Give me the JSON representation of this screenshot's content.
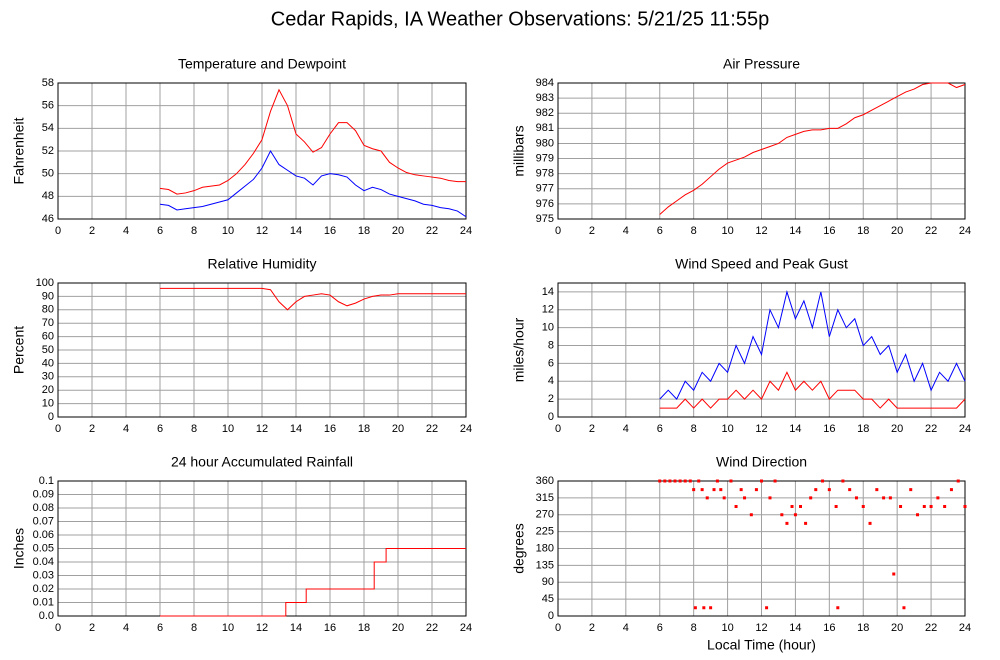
{
  "title": "Cedar Rapids, IA Weather Observations: 5/21/25 11:55p",
  "chart_data": [
    {
      "type": "line",
      "title": "Temperature and Dewpoint",
      "y_label": "Fahrenheit",
      "xlim": [
        0,
        24
      ],
      "xticks": [
        0,
        2,
        4,
        6,
        8,
        10,
        12,
        14,
        16,
        18,
        20,
        22,
        24
      ],
      "ylim": [
        46,
        58
      ],
      "yticks": [
        46,
        48,
        50,
        52,
        54,
        56,
        58
      ],
      "grid": true,
      "x": [
        6,
        6.5,
        7,
        7.5,
        8,
        8.5,
        9,
        9.5,
        10,
        10.5,
        11,
        11.5,
        12,
        12.5,
        13,
        13.5,
        14,
        14.5,
        15,
        15.5,
        16,
        16.5,
        17,
        17.5,
        18,
        18.5,
        19,
        19.5,
        20,
        20.5,
        21,
        21.5,
        22,
        22.5,
        23,
        23.5,
        24
      ],
      "series": [
        {
          "color": "#ff0000",
          "values": [
            48.7,
            48.6,
            48.2,
            48.3,
            48.5,
            48.8,
            48.9,
            49.0,
            49.4,
            50.0,
            50.8,
            51.8,
            53.0,
            55.5,
            57.4,
            56.0,
            53.5,
            52.8,
            51.9,
            52.3,
            53.5,
            54.5,
            54.5,
            53.8,
            52.5,
            52.2,
            52.0,
            51.0,
            50.5,
            50.1,
            49.9,
            49.8,
            49.7,
            49.6,
            49.4,
            49.3,
            49.3
          ]
        },
        {
          "color": "#0000ff",
          "values": [
            47.3,
            47.2,
            46.8,
            46.9,
            47.0,
            47.1,
            47.3,
            47.5,
            47.7,
            48.3,
            48.9,
            49.5,
            50.5,
            52.0,
            50.8,
            50.3,
            49.8,
            49.6,
            49.0,
            49.8,
            50.0,
            49.9,
            49.7,
            49.0,
            48.5,
            48.8,
            48.6,
            48.2,
            48.0,
            47.8,
            47.6,
            47.3,
            47.2,
            47.0,
            46.9,
            46.7,
            46.2
          ]
        }
      ]
    },
    {
      "type": "line",
      "title": "Air Pressure",
      "y_label": "millibars",
      "xlim": [
        0,
        24
      ],
      "xticks": [
        0,
        2,
        4,
        6,
        8,
        10,
        12,
        14,
        16,
        18,
        20,
        22,
        24
      ],
      "ylim": [
        975,
        984
      ],
      "yticks": [
        975,
        976,
        977,
        978,
        979,
        980,
        981,
        982,
        983,
        984
      ],
      "grid": true,
      "x": [
        6,
        6.5,
        7,
        7.5,
        8,
        8.5,
        9,
        9.5,
        10,
        10.5,
        11,
        11.5,
        12,
        12.5,
        13,
        13.5,
        14,
        14.5,
        15,
        15.5,
        16,
        16.5,
        17,
        17.5,
        18,
        18.5,
        19,
        19.5,
        20,
        20.5,
        21,
        21.5,
        22,
        22.5,
        23,
        23.5,
        24
      ],
      "series": [
        {
          "color": "#ff0000",
          "values": [
            975.3,
            975.8,
            976.2,
            976.6,
            976.9,
            977.3,
            977.8,
            978.3,
            978.7,
            978.9,
            979.1,
            979.4,
            979.6,
            979.8,
            980.0,
            980.4,
            980.6,
            980.8,
            980.9,
            980.9,
            981.0,
            981.0,
            981.3,
            981.7,
            981.9,
            982.2,
            982.5,
            982.8,
            983.1,
            983.4,
            983.6,
            983.9,
            984.0,
            984.0,
            984.0,
            983.7,
            983.9
          ]
        }
      ]
    },
    {
      "type": "line",
      "title": "Relative Humidity",
      "y_label": "Percent",
      "xlim": [
        0,
        24
      ],
      "xticks": [
        0,
        2,
        4,
        6,
        8,
        10,
        12,
        14,
        16,
        18,
        20,
        22,
        24
      ],
      "ylim": [
        0,
        100
      ],
      "yticks": [
        0,
        10,
        20,
        30,
        40,
        50,
        60,
        70,
        80,
        90,
        100
      ],
      "grid": true,
      "x": [
        6,
        6.5,
        7,
        7.5,
        8,
        8.5,
        9,
        9.5,
        10,
        10.5,
        11,
        11.5,
        12,
        12.5,
        13,
        13.5,
        14,
        14.5,
        15,
        15.5,
        16,
        16.5,
        17,
        17.5,
        18,
        18.5,
        19,
        19.5,
        20,
        20.5,
        21,
        21.5,
        22,
        22.5,
        23,
        23.5,
        24
      ],
      "series": [
        {
          "color": "#ff0000",
          "values": [
            96,
            96,
            96,
            96,
            96,
            96,
            96,
            96,
            96,
            96,
            96,
            96,
            96,
            95,
            86,
            80,
            86,
            90,
            91,
            92,
            91,
            86,
            83,
            85,
            88,
            90,
            91,
            91,
            92,
            92,
            92,
            92,
            92,
            92,
            92,
            92,
            92
          ]
        }
      ]
    },
    {
      "type": "line",
      "title": "Wind Speed and Peak Gust",
      "y_label": "miles/hour",
      "xlim": [
        0,
        24
      ],
      "xticks": [
        0,
        2,
        4,
        6,
        8,
        10,
        12,
        14,
        16,
        18,
        20,
        22,
        24
      ],
      "ylim": [
        0,
        15
      ],
      "yticks": [
        0,
        2,
        4,
        6,
        8,
        10,
        12,
        14
      ],
      "grid": true,
      "x": [
        6,
        6.5,
        7,
        7.5,
        8,
        8.5,
        9,
        9.5,
        10,
        10.5,
        11,
        11.5,
        12,
        12.5,
        13,
        13.5,
        14,
        14.5,
        15,
        15.5,
        16,
        16.5,
        17,
        17.5,
        18,
        18.5,
        19,
        19.5,
        20,
        20.5,
        21,
        21.5,
        22,
        22.5,
        23,
        23.5,
        24
      ],
      "series": [
        {
          "color": "#0000ff",
          "values": [
            2,
            3,
            2,
            4,
            3,
            5,
            4,
            6,
            5,
            8,
            6,
            9,
            7,
            12,
            10,
            14,
            11,
            13,
            10,
            14,
            9,
            12,
            10,
            11,
            8,
            9,
            7,
            8,
            5,
            7,
            4,
            6,
            3,
            5,
            4,
            6,
            4
          ]
        },
        {
          "color": "#ff0000",
          "values": [
            1,
            1,
            1,
            2,
            1,
            2,
            1,
            2,
            2,
            3,
            2,
            3,
            2,
            4,
            3,
            5,
            3,
            4,
            3,
            4,
            2,
            3,
            3,
            3,
            2,
            2,
            1,
            2,
            1,
            1,
            1,
            1,
            1,
            1,
            1,
            1,
            2
          ]
        }
      ]
    },
    {
      "type": "line",
      "title": "24 hour Accumulated Rainfall",
      "y_label": "Inches",
      "drawstyle": "steps-post",
      "xlim": [
        0,
        24
      ],
      "xticks": [
        0,
        2,
        4,
        6,
        8,
        10,
        12,
        14,
        16,
        18,
        20,
        22,
        24
      ],
      "ylim": [
        0,
        0.1
      ],
      "yticks": [
        {
          "value": 0,
          "label": "0.0"
        },
        0.01,
        0.02,
        0.03,
        0.04,
        0.05,
        0.06,
        0.07,
        0.08,
        0.09,
        0.1
      ],
      "grid": true,
      "x": [
        6,
        13.4,
        14.6,
        18.6,
        19.3,
        24
      ],
      "series": [
        {
          "color": "#ff0000",
          "values": [
            0,
            0.01,
            0.02,
            0.04,
            0.05,
            0.05
          ]
        }
      ]
    },
    {
      "type": "scatter",
      "title": "Wind Direction",
      "y_label": "degrees",
      "x_label": "Local Time (hour)",
      "xlim": [
        0,
        24
      ],
      "xticks": [
        0,
        2,
        4,
        6,
        8,
        10,
        12,
        14,
        16,
        18,
        20,
        22,
        24
      ],
      "ylim": [
        0,
        360
      ],
      "yticks": [
        0,
        45,
        90,
        135,
        180,
        225,
        270,
        315,
        360
      ],
      "grid": true,
      "x": [
        6,
        6.3,
        6.6,
        6.9,
        7.2,
        7.5,
        7.8,
        8.0,
        8.1,
        8.3,
        8.5,
        8.6,
        8.8,
        9.0,
        9.2,
        9.4,
        9.6,
        9.8,
        10.2,
        10.5,
        10.8,
        11.0,
        11.4,
        11.7,
        12.0,
        12.3,
        12.5,
        12.8,
        13.2,
        13.5,
        13.8,
        14.0,
        14.3,
        14.6,
        14.9,
        15.2,
        15.6,
        16.0,
        16.4,
        16.5,
        16.8,
        17.2,
        17.6,
        18.0,
        18.4,
        18.8,
        19.2,
        19.6,
        19.8,
        20.2,
        20.4,
        20.8,
        21.2,
        21.6,
        22.0,
        22.4,
        22.8,
        23.2,
        23.6,
        24.0
      ],
      "series": [
        {
          "color": "#ff0000",
          "values": [
            360,
            360,
            360,
            360,
            360,
            360,
            360,
            337,
            22,
            360,
            337,
            22,
            315,
            22,
            337,
            360,
            337,
            315,
            360,
            292,
            337,
            315,
            270,
            337,
            360,
            22,
            315,
            360,
            270,
            247,
            292,
            270,
            292,
            247,
            315,
            337,
            360,
            337,
            292,
            22,
            360,
            337,
            315,
            292,
            247,
            337,
            315,
            315,
            112,
            292,
            22,
            337,
            270,
            292,
            292,
            315,
            292,
            337,
            360,
            292
          ]
        }
      ]
    }
  ]
}
